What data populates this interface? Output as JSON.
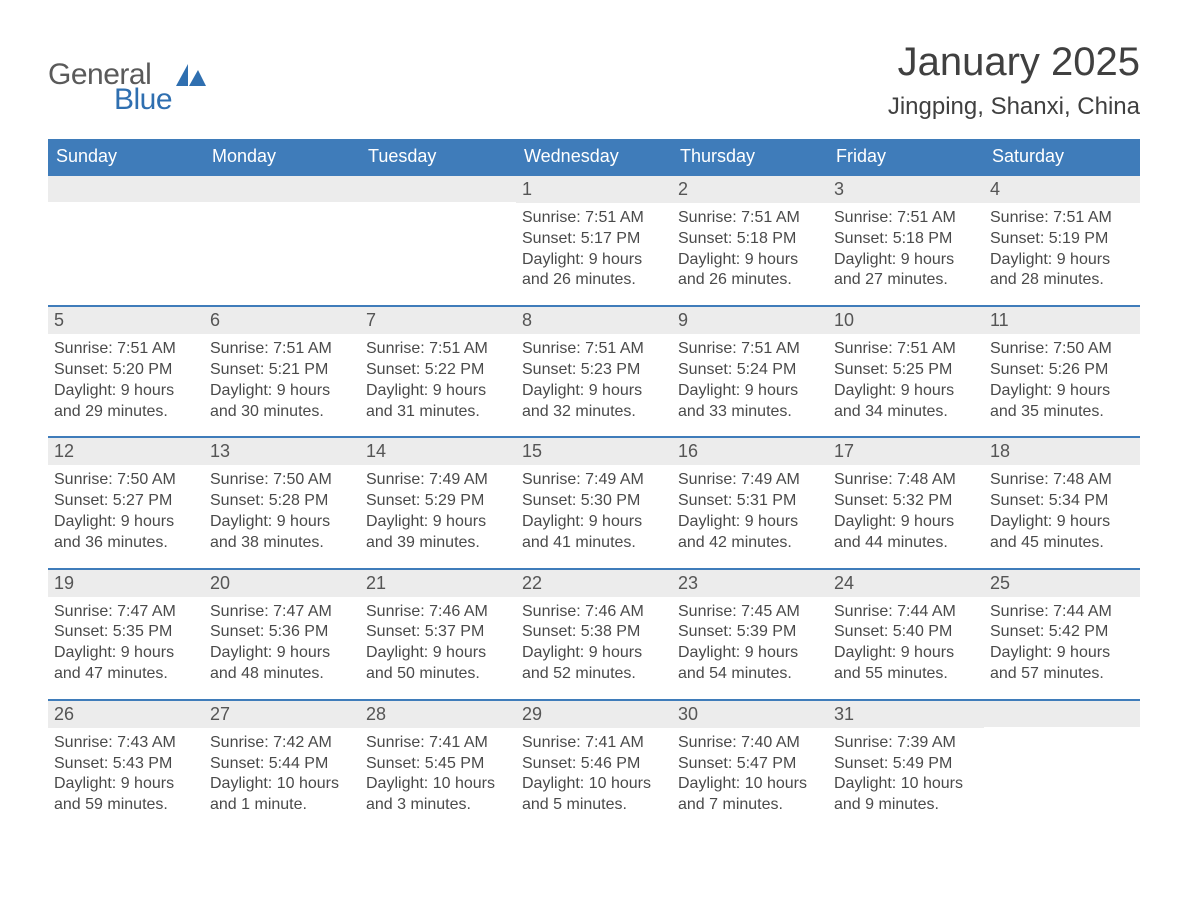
{
  "logo": {
    "text1": "General",
    "text2": "Blue",
    "icon_color": "#2f6fb0"
  },
  "title": "January 2025",
  "location": "Jingping, Shanxi, China",
  "colors": {
    "header_bg": "#3f7cba",
    "header_text": "#ffffff",
    "daynum_bg": "#ececec",
    "daynum_border": "#3f7cba",
    "body_text": "#4a4a4a",
    "page_bg": "#ffffff"
  },
  "weekdays": [
    "Sunday",
    "Monday",
    "Tuesday",
    "Wednesday",
    "Thursday",
    "Friday",
    "Saturday"
  ],
  "weeks": [
    [
      null,
      null,
      null,
      {
        "n": "1",
        "sunrise": "7:51 AM",
        "sunset": "5:17 PM",
        "daylight": "9 hours and 26 minutes."
      },
      {
        "n": "2",
        "sunrise": "7:51 AM",
        "sunset": "5:18 PM",
        "daylight": "9 hours and 26 minutes."
      },
      {
        "n": "3",
        "sunrise": "7:51 AM",
        "sunset": "5:18 PM",
        "daylight": "9 hours and 27 minutes."
      },
      {
        "n": "4",
        "sunrise": "7:51 AM",
        "sunset": "5:19 PM",
        "daylight": "9 hours and 28 minutes."
      }
    ],
    [
      {
        "n": "5",
        "sunrise": "7:51 AM",
        "sunset": "5:20 PM",
        "daylight": "9 hours and 29 minutes."
      },
      {
        "n": "6",
        "sunrise": "7:51 AM",
        "sunset": "5:21 PM",
        "daylight": "9 hours and 30 minutes."
      },
      {
        "n": "7",
        "sunrise": "7:51 AM",
        "sunset": "5:22 PM",
        "daylight": "9 hours and 31 minutes."
      },
      {
        "n": "8",
        "sunrise": "7:51 AM",
        "sunset": "5:23 PM",
        "daylight": "9 hours and 32 minutes."
      },
      {
        "n": "9",
        "sunrise": "7:51 AM",
        "sunset": "5:24 PM",
        "daylight": "9 hours and 33 minutes."
      },
      {
        "n": "10",
        "sunrise": "7:51 AM",
        "sunset": "5:25 PM",
        "daylight": "9 hours and 34 minutes."
      },
      {
        "n": "11",
        "sunrise": "7:50 AM",
        "sunset": "5:26 PM",
        "daylight": "9 hours and 35 minutes."
      }
    ],
    [
      {
        "n": "12",
        "sunrise": "7:50 AM",
        "sunset": "5:27 PM",
        "daylight": "9 hours and 36 minutes."
      },
      {
        "n": "13",
        "sunrise": "7:50 AM",
        "sunset": "5:28 PM",
        "daylight": "9 hours and 38 minutes."
      },
      {
        "n": "14",
        "sunrise": "7:49 AM",
        "sunset": "5:29 PM",
        "daylight": "9 hours and 39 minutes."
      },
      {
        "n": "15",
        "sunrise": "7:49 AM",
        "sunset": "5:30 PM",
        "daylight": "9 hours and 41 minutes."
      },
      {
        "n": "16",
        "sunrise": "7:49 AM",
        "sunset": "5:31 PM",
        "daylight": "9 hours and 42 minutes."
      },
      {
        "n": "17",
        "sunrise": "7:48 AM",
        "sunset": "5:32 PM",
        "daylight": "9 hours and 44 minutes."
      },
      {
        "n": "18",
        "sunrise": "7:48 AM",
        "sunset": "5:34 PM",
        "daylight": "9 hours and 45 minutes."
      }
    ],
    [
      {
        "n": "19",
        "sunrise": "7:47 AM",
        "sunset": "5:35 PM",
        "daylight": "9 hours and 47 minutes."
      },
      {
        "n": "20",
        "sunrise": "7:47 AM",
        "sunset": "5:36 PM",
        "daylight": "9 hours and 48 minutes."
      },
      {
        "n": "21",
        "sunrise": "7:46 AM",
        "sunset": "5:37 PM",
        "daylight": "9 hours and 50 minutes."
      },
      {
        "n": "22",
        "sunrise": "7:46 AM",
        "sunset": "5:38 PM",
        "daylight": "9 hours and 52 minutes."
      },
      {
        "n": "23",
        "sunrise": "7:45 AM",
        "sunset": "5:39 PM",
        "daylight": "9 hours and 54 minutes."
      },
      {
        "n": "24",
        "sunrise": "7:44 AM",
        "sunset": "5:40 PM",
        "daylight": "9 hours and 55 minutes."
      },
      {
        "n": "25",
        "sunrise": "7:44 AM",
        "sunset": "5:42 PM",
        "daylight": "9 hours and 57 minutes."
      }
    ],
    [
      {
        "n": "26",
        "sunrise": "7:43 AM",
        "sunset": "5:43 PM",
        "daylight": "9 hours and 59 minutes."
      },
      {
        "n": "27",
        "sunrise": "7:42 AM",
        "sunset": "5:44 PM",
        "daylight": "10 hours and 1 minute."
      },
      {
        "n": "28",
        "sunrise": "7:41 AM",
        "sunset": "5:45 PM",
        "daylight": "10 hours and 3 minutes."
      },
      {
        "n": "29",
        "sunrise": "7:41 AM",
        "sunset": "5:46 PM",
        "daylight": "10 hours and 5 minutes."
      },
      {
        "n": "30",
        "sunrise": "7:40 AM",
        "sunset": "5:47 PM",
        "daylight": "10 hours and 7 minutes."
      },
      {
        "n": "31",
        "sunrise": "7:39 AM",
        "sunset": "5:49 PM",
        "daylight": "10 hours and 9 minutes."
      },
      null
    ]
  ],
  "labels": {
    "sunrise": "Sunrise: ",
    "sunset": "Sunset: ",
    "daylight": "Daylight: "
  }
}
